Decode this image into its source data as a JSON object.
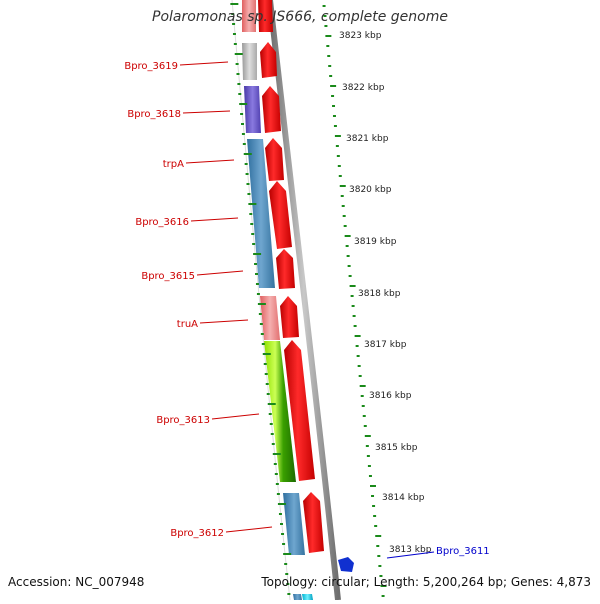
{
  "title": "Polaromonas sp. JS666, complete genome",
  "footer": {
    "accession": "Accession: NC_007948",
    "summary": "Topology: circular; Length: 5,200,264 bp; Genes: 4,873"
  },
  "colors": {
    "label_red": "#cc0000",
    "label_blue": "#0000cc",
    "tick_green": "#1a8a1a",
    "gene_red": "#ee1111",
    "backbone": "#8c8c8c"
  },
  "scale_labels": [
    "3823 kbp",
    "3822 kbp",
    "3821 kbp",
    "3820 kbp",
    "3819 kbp",
    "3818 kbp",
    "3817 kbp",
    "3816 kbp",
    "3815 kbp",
    "3814 kbp",
    "3813 kbp"
  ],
  "gene_labels": [
    "Bpro_3619",
    "Bpro_3618",
    "trpA",
    "Bpro_3616",
    "Bpro_3615",
    "truA",
    "Bpro_3613",
    "Bpro_3612",
    "Bpro_3611"
  ],
  "colored_blocks": [
    "pink",
    "gray",
    "purple",
    "steelblue",
    "steelblue",
    "pink",
    "lime",
    "steelblue",
    "cyan"
  ],
  "red_arrows": 8
}
